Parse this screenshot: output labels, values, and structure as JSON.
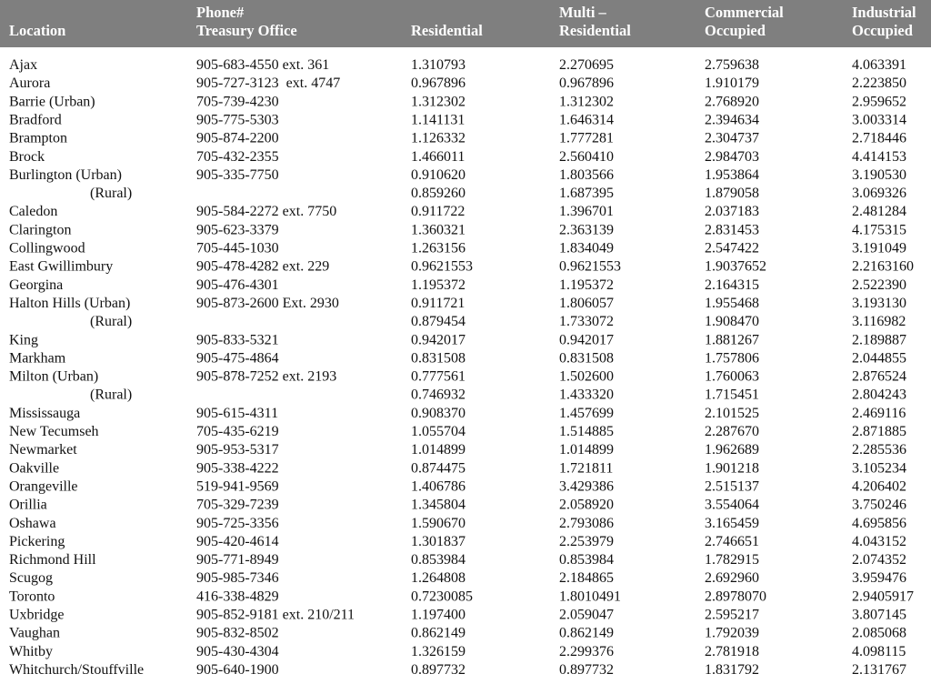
{
  "table": {
    "columns": [
      [
        "Location"
      ],
      [
        "Phone#",
        "Treasury Office"
      ],
      [
        "Residential"
      ],
      [
        "Multi –",
        "Residential"
      ],
      [
        "Commercial",
        "Occupied"
      ],
      [
        "Industrial",
        "Occupied"
      ]
    ],
    "rows": [
      {
        "location": "Ajax",
        "phone": "905-683-4550 ext. 361",
        "rates": [
          "1.310793",
          "2.270695",
          "2.759638",
          "4.063391"
        ]
      },
      {
        "location": "Aurora",
        "phone": "905-727-3123  ext. 4747",
        "rates": [
          "0.967896",
          "0.967896",
          "1.910179",
          "2.223850"
        ]
      },
      {
        "location": "Barrie (Urban)",
        "phone": "705-739-4230",
        "rates": [
          "1.312302",
          "1.312302",
          "2.768920",
          "2.959652"
        ]
      },
      {
        "location": "Bradford",
        "phone": "905-775-5303",
        "rates": [
          "1.141131",
          "1.646314",
          "2.394634",
          "3.003314"
        ]
      },
      {
        "location": "Brampton",
        "phone": "905-874-2200",
        "rates": [
          "1.126332",
          "1.777281",
          "2.304737",
          "2.718446"
        ]
      },
      {
        "location": "Brock",
        "phone": "705-432-2355",
        "rates": [
          "1.466011",
          "2.560410",
          "2.984703",
          "4.414153"
        ]
      },
      {
        "location": "Burlington (Urban)",
        "phone": "905-335-7750",
        "rates": [
          "0.910620",
          "1.803566",
          "1.953864",
          "3.190530"
        ]
      },
      {
        "location": "(Rural)",
        "rates": [
          "0.859260",
          "1.687395",
          "1.879058",
          "3.069326"
        ]
      },
      {
        "location": "Caledon",
        "phone": "905-584-2272 ext. 7750",
        "rates": [
          "0.911722",
          "1.396701",
          "2.037183",
          "2.481284"
        ]
      },
      {
        "location": "Clarington",
        "phone": "905-623-3379",
        "rates": [
          "1.360321",
          "2.363139",
          "2.831453",
          "4.175315"
        ]
      },
      {
        "location": "Collingwood",
        "phone": "705-445-1030",
        "rates": [
          "1.263156",
          "1.834049",
          "2.547422",
          "3.191049"
        ]
      },
      {
        "location": "East Gwillimbury",
        "phone": "905-478-4282 ext. 229",
        "rates": [
          "0.9621553",
          "0.9621553",
          "1.9037652",
          "2.2163160"
        ]
      },
      {
        "location": "Georgina",
        "phone": "905-476-4301",
        "rates": [
          "1.195372",
          "1.195372",
          "2.164315",
          "2.522390"
        ]
      },
      {
        "location": "Halton Hills (Urban)",
        "phone": "905-873-2600 Ext. 2930",
        "rates": [
          "0.911721",
          "1.806057",
          "1.955468",
          "3.193130"
        ]
      },
      {
        "location": "(Rural)",
        "rates": [
          "0.879454",
          "1.733072",
          "1.908470",
          "3.116982"
        ]
      },
      {
        "location": "King",
        "phone": "905-833-5321",
        "rates": [
          "0.942017",
          "0.942017",
          "1.881267",
          "2.189887"
        ]
      },
      {
        "location": "Markham",
        "phone": "905-475-4864",
        "rates": [
          "0.831508",
          "0.831508",
          "1.757806",
          "2.044855"
        ]
      },
      {
        "location": "Milton (Urban)",
        "phone": "905-878-7252 ext. 2193",
        "rates": [
          "0.777561",
          "1.502600",
          "1.760063",
          "2.876524"
        ]
      },
      {
        "location": "(Rural)",
        "rates": [
          "0.746932",
          "1.433320",
          "1.715451",
          "2.804243"
        ]
      },
      {
        "location": "Mississauga",
        "phone": "905-615-4311",
        "rates": [
          "0.908370",
          "1.457699",
          "2.101525",
          "2.469116"
        ]
      },
      {
        "location": "New Tecumseh",
        "phone": "705-435-6219",
        "rates": [
          "1.055704",
          "1.514885",
          "2.287670",
          "2.871885"
        ]
      },
      {
        "location": "Newmarket",
        "phone": "905-953-5317",
        "rates": [
          "1.014899",
          "1.014899",
          "1.962689",
          "2.285536"
        ]
      },
      {
        "location": "Oakville",
        "phone": "905-338-4222",
        "rates": [
          "0.874475",
          "1.721811",
          "1.901218",
          "3.105234"
        ]
      },
      {
        "location": "Orangeville",
        "phone": "519-941-9569",
        "rates": [
          "1.406786",
          "3.429386",
          "2.515137",
          "4.206402"
        ]
      },
      {
        "location": "Orillia",
        "phone": "705-329-7239",
        "rates": [
          "1.345804",
          "2.058920",
          "3.554064",
          "3.750246"
        ]
      },
      {
        "location": "Oshawa",
        "phone": "905-725-3356",
        "rates": [
          "1.590670",
          "2.793086",
          "3.165459",
          "4.695856"
        ]
      },
      {
        "location": "Pickering",
        "phone": "905-420-4614",
        "rates": [
          "1.301837",
          "2.253979",
          "2.746651",
          "4.043152"
        ]
      },
      {
        "location": "Richmond Hill",
        "phone": "905-771-8949",
        "rates": [
          "0.853984",
          "0.853984",
          "1.782915",
          "2.074352"
        ]
      },
      {
        "location": "Scugog",
        "phone": "905-985-7346",
        "rates": [
          "1.264808",
          "2.184865",
          "2.692960",
          "3.959476"
        ]
      },
      {
        "location": "Toronto",
        "phone": "416-338-4829",
        "rates": [
          "0.7230085",
          "1.8010491",
          "2.8978070",
          "2.9405917"
        ]
      },
      {
        "location": "Uxbridge",
        "phone": "905-852-9181 ext. 210/211",
        "rates": [
          "1.197400",
          "2.059047",
          "2.595217",
          "3.807145"
        ]
      },
      {
        "location": "Vaughan",
        "phone": "905-832-8502",
        "rates": [
          "0.862149",
          "0.862149",
          "1.792039",
          "2.085068"
        ]
      },
      {
        "location": "Whitby",
        "phone": "905-430-4304",
        "rates": [
          "1.326159",
          "2.299376",
          "2.781918",
          "4.098115"
        ]
      },
      {
        "location": "Whitchurch/Stouffville",
        "phone": "905-640-1900",
        "rates": [
          "0.897732",
          "0.897732",
          "1.831792",
          "2.131767"
        ]
      }
    ]
  }
}
